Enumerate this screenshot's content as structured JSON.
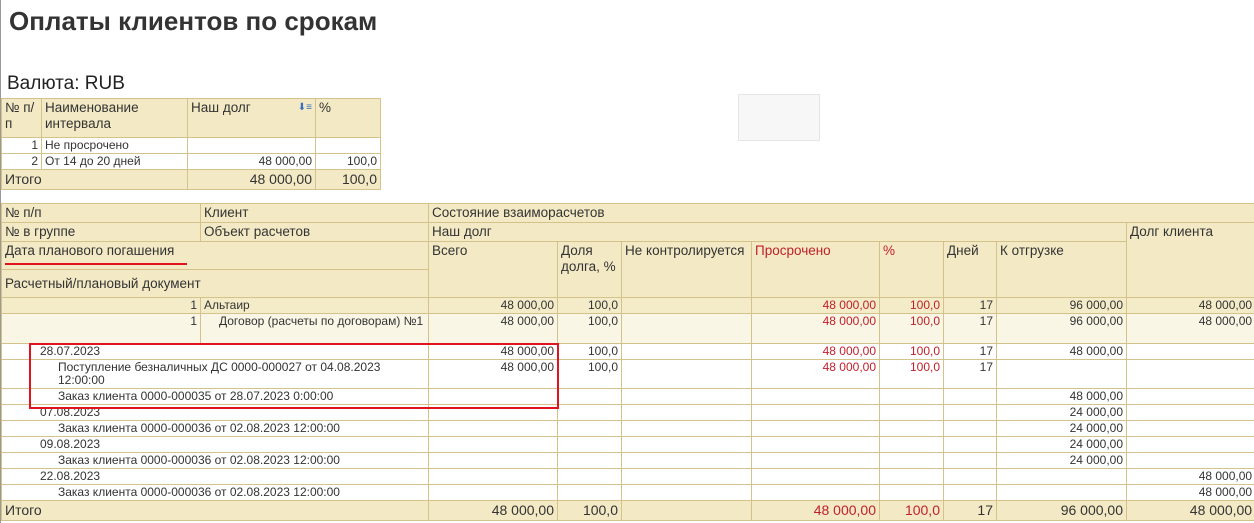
{
  "title": "Оплаты клиентов по срокам",
  "currency": "Валюта: RUB",
  "summary": {
    "headers": [
      "№ п/п",
      "Наименование интервала",
      "Наш долг",
      "%"
    ],
    "sort_icon": "sort-desc-icon",
    "rows": [
      {
        "n": "1",
        "name": "Не просрочено",
        "debt": "",
        "pct": ""
      },
      {
        "n": "2",
        "name": "От 14 до 20 дней",
        "debt": "48 000,00",
        "pct": "100,0"
      }
    ],
    "total": {
      "label": "Итого",
      "debt": "48 000,00",
      "pct": "100,0"
    }
  },
  "main": {
    "headers": {
      "num": "№ п/п",
      "client": "Клиент",
      "state": "Состояние взаиморасчетов",
      "group_num": "№ в группе",
      "object": "Объект расчетов",
      "our_debt": "Наш долг",
      "client_debt": "Долг клиента",
      "date": "Дата планового погашения",
      "doc": "Расчетный/плановый документ",
      "total": "Всего",
      "share": "Доля долга, %",
      "uncontrolled": "Не контролируется",
      "overdue": "Просрочено",
      "overdue_pct": "%",
      "days": "Дней",
      "to_ship": "К отгрузке"
    },
    "rows": [
      {
        "type": "client",
        "num": "1",
        "label": "Альтаир",
        "total": "48 000,00",
        "share": "100,0",
        "unc": "",
        "overdue": "48 000,00",
        "opct": "100,0",
        "days": "17",
        "ship": "96 000,00",
        "cdebt": "48 000,00"
      },
      {
        "type": "object",
        "num": "1",
        "label": "Договор (расчеты по договорам) №1",
        "total": "48 000,00",
        "share": "100,0",
        "unc": "",
        "overdue": "48 000,00",
        "opct": "100,0",
        "days": "17",
        "ship": "96 000,00",
        "cdebt": "48 000,00"
      },
      {
        "type": "date",
        "label": "28.07.2023",
        "total": "48 000,00",
        "share": "100,0",
        "unc": "",
        "overdue": "48 000,00",
        "opct": "100,0",
        "days": "17",
        "ship": "48 000,00",
        "cdebt": ""
      },
      {
        "type": "doc",
        "label": "Поступление безналичных ДС 0000-000027 от 04.08.2023 12:00:00",
        "total": "48 000,00",
        "share": "100,0",
        "unc": "",
        "overdue": "48 000,00",
        "opct": "100,0",
        "days": "17",
        "ship": "",
        "cdebt": ""
      },
      {
        "type": "doc",
        "label": "Заказ клиента 0000-000035 от 28.07.2023 0:00:00",
        "total": "",
        "share": "",
        "unc": "",
        "overdue": "",
        "opct": "",
        "days": "",
        "ship": "48 000,00",
        "cdebt": ""
      },
      {
        "type": "date",
        "label": "07.08.2023",
        "total": "",
        "share": "",
        "unc": "",
        "overdue": "",
        "opct": "",
        "days": "",
        "ship": "24 000,00",
        "cdebt": ""
      },
      {
        "type": "doc",
        "label": "Заказ клиента 0000-000036 от 02.08.2023 12:00:00",
        "total": "",
        "share": "",
        "unc": "",
        "overdue": "",
        "opct": "",
        "days": "",
        "ship": "24 000,00",
        "cdebt": ""
      },
      {
        "type": "date",
        "label": "09.08.2023",
        "total": "",
        "share": "",
        "unc": "",
        "overdue": "",
        "opct": "",
        "days": "",
        "ship": "24 000,00",
        "cdebt": ""
      },
      {
        "type": "doc",
        "label": "Заказ клиента 0000-000036 от 02.08.2023 12:00:00",
        "total": "",
        "share": "",
        "unc": "",
        "overdue": "",
        "opct": "",
        "days": "",
        "ship": "24 000,00",
        "cdebt": ""
      },
      {
        "type": "date",
        "label": "22.08.2023",
        "total": "",
        "share": "",
        "unc": "",
        "overdue": "",
        "opct": "",
        "days": "",
        "ship": "",
        "cdebt": "48 000,00"
      },
      {
        "type": "doc",
        "label": "Заказ клиента 0000-000036 от 02.08.2023 12:00:00",
        "total": "",
        "share": "",
        "unc": "",
        "overdue": "",
        "opct": "",
        "days": "",
        "ship": "",
        "cdebt": "48 000,00"
      }
    ],
    "total": {
      "label": "Итого",
      "total": "48 000,00",
      "share": "100,0",
      "unc": "",
      "overdue": "48 000,00",
      "opct": "100,0",
      "days": "17",
      "ship": "96 000,00",
      "cdebt": "48 000,00"
    }
  },
  "colors": {
    "header_bg": "#f3eac5",
    "border": "#d3c28a",
    "overdue": "#c0202a",
    "highlight": "#e0141e"
  }
}
